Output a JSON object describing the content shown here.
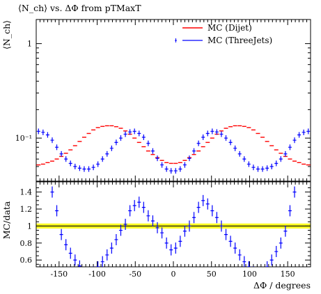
{
  "chart_data": [
    {
      "type": "scatter",
      "title": "⟨N_ch⟩ vs. ΔΦ from pTMaxT",
      "ylabel": "⟨N_ch⟩",
      "y_scale": "log",
      "xlim": [
        -180,
        180
      ],
      "ylim": [
        0.035,
        1.8
      ],
      "x_ticks": [
        -150,
        -100,
        -50,
        0,
        50,
        100,
        150
      ],
      "y_tick_labels": [
        "1",
        "10⁻¹"
      ],
      "legend": {
        "placement": "top-right"
      },
      "series": [
        {
          "name": "MC (Dijet)",
          "color": "#ff0000",
          "marker": "hline",
          "x": [
            -177,
            -171,
            -165,
            -159,
            -153,
            -147,
            -141,
            -135,
            -129,
            -123,
            -117,
            -111,
            -105,
            -99,
            -93,
            -87,
            -81,
            -75,
            -69,
            -63,
            -57,
            -51,
            -45,
            -39,
            -33,
            -27,
            -21,
            -15,
            -9,
            -3,
            3,
            9,
            15,
            21,
            27,
            33,
            39,
            45,
            51,
            57,
            63,
            69,
            75,
            81,
            87,
            93,
            99,
            105,
            111,
            117,
            123,
            129,
            135,
            141,
            147,
            153,
            159,
            165,
            171,
            177
          ],
          "y": [
            0.052,
            0.053,
            0.055,
            0.057,
            0.06,
            0.064,
            0.069,
            0.075,
            0.083,
            0.092,
            0.102,
            0.112,
            0.122,
            0.129,
            0.133,
            0.135,
            0.135,
            0.132,
            0.127,
            0.119,
            0.11,
            0.1,
            0.09,
            0.081,
            0.073,
            0.067,
            0.062,
            0.058,
            0.055,
            0.054,
            0.054,
            0.055,
            0.058,
            0.062,
            0.067,
            0.073,
            0.081,
            0.09,
            0.1,
            0.11,
            0.119,
            0.127,
            0.132,
            0.135,
            0.135,
            0.133,
            0.129,
            0.122,
            0.112,
            0.102,
            0.092,
            0.083,
            0.075,
            0.069,
            0.064,
            0.06,
            0.057,
            0.055,
            0.053,
            0.052
          ]
        },
        {
          "name": "MC (ThreeJets)",
          "color": "#0000ff",
          "marker": "plus",
          "x": [
            -177,
            -171,
            -165,
            -159,
            -153,
            -147,
            -141,
            -135,
            -129,
            -123,
            -117,
            -111,
            -105,
            -99,
            -93,
            -87,
            -81,
            -75,
            -69,
            -63,
            -57,
            -51,
            -45,
            -39,
            -33,
            -27,
            -21,
            -15,
            -9,
            -3,
            3,
            9,
            15,
            21,
            27,
            33,
            39,
            45,
            51,
            57,
            63,
            69,
            75,
            81,
            87,
            93,
            99,
            105,
            111,
            117,
            123,
            129,
            135,
            141,
            147,
            153,
            159,
            165,
            171,
            177
          ],
          "y": [
            0.118,
            0.115,
            0.108,
            0.095,
            0.08,
            0.068,
            0.06,
            0.054,
            0.05,
            0.048,
            0.047,
            0.047,
            0.049,
            0.053,
            0.06,
            0.068,
            0.078,
            0.09,
            0.1,
            0.11,
            0.116,
            0.118,
            0.112,
            0.102,
            0.088,
            0.073,
            0.061,
            0.052,
            0.047,
            0.045,
            0.045,
            0.047,
            0.052,
            0.061,
            0.073,
            0.088,
            0.102,
            0.112,
            0.118,
            0.116,
            0.11,
            0.1,
            0.09,
            0.078,
            0.068,
            0.06,
            0.053,
            0.049,
            0.047,
            0.047,
            0.048,
            0.05,
            0.054,
            0.06,
            0.068,
            0.08,
            0.095,
            0.108,
            0.115,
            0.118
          ]
        }
      ]
    },
    {
      "type": "scatter",
      "xlabel": "ΔΦ / degrees",
      "ylabel": "MC/data",
      "xlim": [
        -180,
        180
      ],
      "ylim": [
        0.52,
        1.52
      ],
      "x_ticks": [
        -150,
        -100,
        -50,
        0,
        50,
        100,
        150
      ],
      "y_ticks": [
        0.6,
        0.8,
        1.0,
        1.2,
        1.4
      ],
      "y_tick_labels": [
        "0.6",
        "0.8",
        "1",
        "1.2",
        "1.4"
      ],
      "reference_band": {
        "y": 1.0,
        "halfwidth": 0.03,
        "color": "#ffff00"
      },
      "series": [
        {
          "name": "MC (ThreeJets)",
          "color": "#0000ff",
          "marker": "plus",
          "x": [
            -159,
            -153,
            -147,
            -141,
            -135,
            -129,
            -123,
            -117,
            -111,
            -105,
            -99,
            -93,
            -87,
            -81,
            -75,
            -69,
            -63,
            -57,
            -51,
            -45,
            -39,
            -33,
            -27,
            -21,
            -15,
            -9,
            -3,
            3,
            9,
            15,
            21,
            27,
            33,
            39,
            45,
            51,
            57,
            63,
            69,
            75,
            81,
            87,
            93,
            99,
            105,
            111,
            117,
            123,
            129,
            135,
            141,
            147,
            153,
            159
          ],
          "y": [
            1.4,
            1.18,
            0.9,
            0.78,
            0.68,
            0.6,
            0.53,
            0.45,
            0.44,
            0.46,
            0.52,
            0.58,
            0.66,
            0.74,
            0.84,
            0.95,
            1.02,
            1.18,
            1.24,
            1.28,
            1.22,
            1.12,
            1.06,
            0.98,
            0.92,
            0.8,
            0.72,
            0.74,
            0.82,
            0.94,
            1.0,
            1.1,
            1.22,
            1.3,
            1.26,
            1.18,
            1.1,
            1.0,
            0.9,
            0.82,
            0.74,
            0.66,
            0.58,
            0.52,
            0.46,
            0.44,
            0.45,
            0.52,
            0.6,
            0.7,
            0.8,
            0.94,
            1.18,
            1.4
          ]
        }
      ]
    }
  ]
}
